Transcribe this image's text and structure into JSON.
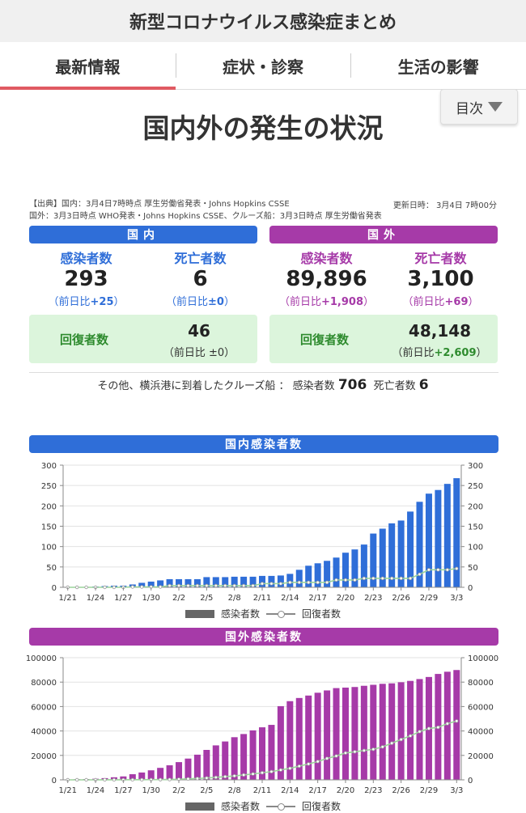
{
  "app": {
    "title": "新型コロナウイルス感染症まとめ"
  },
  "tabs": [
    {
      "label": "最新情報",
      "active": true
    },
    {
      "label": "症状・診察",
      "active": false
    },
    {
      "label": "生活の影響",
      "active": false
    }
  ],
  "toc": {
    "label": "目次"
  },
  "section": {
    "title": "国内外の発生の状況"
  },
  "source": {
    "line1": "【出典】国内：3月4日7時時点 厚生労働省発表・Johns Hopkins CSSE",
    "line2": "国外：3月3日時点 WHO発表・Johns Hopkins CSSE、クルーズ船：3月3日時点 厚生労働省発表",
    "updated": "更新日時： 3月4日 7時00分"
  },
  "domestic": {
    "header": "国内",
    "infected_label": "感染者数",
    "infected": "293",
    "infected_diff_prefix": "（前日比",
    "infected_diff": "+25",
    "infected_diff_suffix": "）",
    "deaths_label": "死亡者数",
    "deaths": "6",
    "deaths_diff_prefix": "（前日比",
    "deaths_diff": "±0",
    "deaths_diff_suffix": "）",
    "recovered_label": "回復者数",
    "recovered": "46",
    "recovered_diff": "（前日比 ±0）"
  },
  "overseas": {
    "header": "国外",
    "infected_label": "感染者数",
    "infected": "89,896",
    "infected_diff_prefix": "（前日比",
    "infected_diff": "+1,908",
    "infected_diff_suffix": "）",
    "deaths_label": "死亡者数",
    "deaths": "3,100",
    "deaths_diff_prefix": "（前日比",
    "deaths_diff": "+69",
    "deaths_diff_suffix": "）",
    "recovered_label": "回復者数",
    "recovered": "48,148",
    "recovered_diff_prefix": "（前日比",
    "recovered_diff": "+2,609",
    "recovered_diff_suffix": "）"
  },
  "cruise": {
    "prefix": "その他、横浜港に到着したクルーズ船 ：",
    "infected_label": "感染者数",
    "infected": "706",
    "deaths_label": "死亡者数",
    "deaths": "6"
  },
  "colors": {
    "domestic": "#2f6ed8",
    "overseas": "#a63aa8",
    "recovered_text": "#2e8b2e",
    "recovered_bg": "#dcf5dc",
    "tab_underline": "#e05a62"
  },
  "chart_data": [
    {
      "type": "bar",
      "title": "国内感染者数",
      "categories": [
        "1/21",
        "1/22",
        "1/23",
        "1/24",
        "1/25",
        "1/26",
        "1/27",
        "1/28",
        "1/29",
        "1/30",
        "1/31",
        "2/1",
        "2/2",
        "2/3",
        "2/4",
        "2/5",
        "2/6",
        "2/7",
        "2/8",
        "2/9",
        "2/10",
        "2/11",
        "2/12",
        "2/13",
        "2/14",
        "2/15",
        "2/16",
        "2/17",
        "2/18",
        "2/19",
        "2/20",
        "2/21",
        "2/22",
        "2/23",
        "2/24",
        "2/25",
        "2/26",
        "2/27",
        "2/28",
        "2/29",
        "3/1",
        "3/2",
        "3/3"
      ],
      "tick_labels": [
        "1/21",
        "1/24",
        "1/27",
        "1/30",
        "2/2",
        "2/5",
        "2/8",
        "2/11",
        "2/14",
        "2/17",
        "2/20",
        "2/23",
        "2/26",
        "2/29",
        "3/3"
      ],
      "series": [
        {
          "name": "感染者数",
          "type": "bar",
          "values": [
            1,
            1,
            1,
            2,
            3,
            4,
            4,
            7,
            11,
            14,
            17,
            20,
            20,
            20,
            20,
            25,
            25,
            25,
            26,
            26,
            26,
            28,
            28,
            29,
            33,
            43,
            53,
            59,
            65,
            73,
            85,
            93,
            105,
            132,
            144,
            157,
            164,
            186,
            210,
            230,
            239,
            254,
            268
          ]
        },
        {
          "name": "回復者数",
          "type": "line",
          "values": [
            0,
            0,
            0,
            0,
            0,
            0,
            0,
            1,
            1,
            1,
            1,
            4,
            4,
            4,
            4,
            4,
            4,
            4,
            4,
            4,
            4,
            9,
            9,
            9,
            12,
            12,
            12,
            12,
            12,
            18,
            18,
            18,
            22,
            22,
            22,
            22,
            22,
            22,
            32,
            43,
            43,
            43,
            46
          ]
        }
      ],
      "ylim": [
        0,
        300
      ],
      "yticks": [
        0,
        50,
        100,
        150,
        200,
        250,
        300
      ],
      "legend": "bottom"
    },
    {
      "type": "bar",
      "title": "国外感染者数",
      "categories": [
        "1/21",
        "1/22",
        "1/23",
        "1/24",
        "1/25",
        "1/26",
        "1/27",
        "1/28",
        "1/29",
        "1/30",
        "1/31",
        "2/1",
        "2/2",
        "2/3",
        "2/4",
        "2/5",
        "2/6",
        "2/7",
        "2/8",
        "2/9",
        "2/10",
        "2/11",
        "2/12",
        "2/13",
        "2/14",
        "2/15",
        "2/16",
        "2/17",
        "2/18",
        "2/19",
        "2/20",
        "2/21",
        "2/22",
        "2/23",
        "2/24",
        "2/25",
        "2/26",
        "2/27",
        "2/28",
        "2/29",
        "3/1",
        "3/2",
        "3/3"
      ],
      "tick_labels": [
        "1/21",
        "1/24",
        "1/27",
        "1/30",
        "2/2",
        "2/5",
        "2/8",
        "2/11",
        "2/14",
        "2/17",
        "2/20",
        "2/23",
        "2/26",
        "2/29",
        "3/3"
      ],
      "series": [
        {
          "name": "感染者数",
          "type": "bar",
          "values": [
            300,
            550,
            650,
            900,
            1400,
            2100,
            2800,
            4600,
            6000,
            7800,
            9800,
            11900,
            14500,
            17400,
            20600,
            24500,
            28200,
            31400,
            34900,
            37500,
            40500,
            43000,
            45000,
            60300,
            64400,
            67000,
            69000,
            71300,
            73200,
            75100,
            75500,
            76000,
            77000,
            77800,
            78600,
            79000,
            79900,
            81000,
            82500,
            84200,
            86700,
            88500,
            89896
          ]
        },
        {
          "name": "回復者数",
          "type": "line",
          "values": [
            0,
            0,
            0,
            0,
            50,
            50,
            60,
            100,
            130,
            170,
            230,
            290,
            500,
            800,
            1100,
            1500,
            2000,
            2600,
            3200,
            4000,
            4800,
            5800,
            6700,
            8100,
            9400,
            11200,
            13000,
            15000,
            17500,
            19500,
            22000,
            23000,
            24000,
            25000,
            27000,
            30000,
            33000,
            36000,
            39500,
            42000,
            43000,
            46000,
            48148
          ]
        }
      ],
      "ylim": [
        0,
        100000
      ],
      "yticks": [
        0,
        20000,
        40000,
        60000,
        80000,
        100000
      ],
      "legend": "bottom"
    }
  ]
}
